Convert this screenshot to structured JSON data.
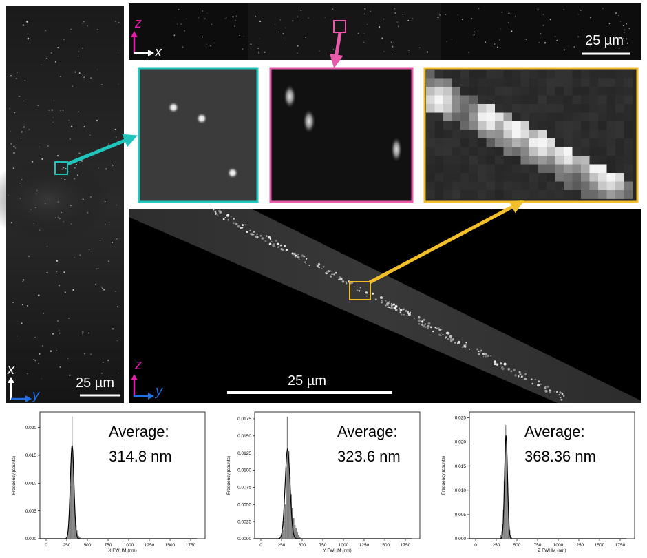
{
  "colors": {
    "cyan": "#1fc4bb",
    "pink": "#e85bab",
    "yellow": "#f3be2c",
    "z_axis": "#e21fa6",
    "x_axis": "#ffffff",
    "y_axis": "#1f6fe5"
  },
  "left_panel": {
    "x_label": "x",
    "y_label": "y",
    "scale_label": "25 µm"
  },
  "top_panel": {
    "z_label": "z",
    "x_label": "x",
    "scale_label": "25 µm"
  },
  "bottom_panel": {
    "z_label": "z",
    "y_label": "y",
    "scale_label": "25 µm"
  },
  "insets": [
    {
      "name": "cyan inset"
    },
    {
      "name": "pink inset"
    },
    {
      "name": "yellow inset"
    }
  ],
  "chart_data": [
    {
      "type": "bar",
      "xlabel": "X FWHM (nm)",
      "ylabel": "Frequency (counts)",
      "xlim": [
        -75,
        1925
      ],
      "ylim": [
        0,
        0.0228
      ],
      "xticks": [
        0,
        250,
        500,
        750,
        1000,
        1250,
        1500,
        1750
      ],
      "xtick_labels": [
        "0",
        "250",
        "500",
        "750",
        "1000",
        "1250",
        "1500",
        "1750"
      ],
      "yticks": [
        0,
        0.005,
        0.01,
        0.015,
        0.02
      ],
      "ytick_labels": [
        "0.000",
        "0.005",
        "0.010",
        "0.015",
        "0.020"
      ],
      "annotation": [
        "Average:",
        "314.8 nm"
      ],
      "histogram_x": [
        250,
        260,
        270,
        280,
        290,
        300,
        310,
        320,
        330,
        340,
        350,
        360,
        370,
        380,
        390,
        400,
        410
      ],
      "histogram_y": [
        0.0007,
        0.001,
        0.0025,
        0.005,
        0.0095,
        0.0155,
        0.022,
        0.016,
        0.011,
        0.007,
        0.004,
        0.0025,
        0.0015,
        0.0009,
        0.0005,
        0.0003,
        0.0002
      ],
      "fit_center": 314.8,
      "fit_sigma": 22,
      "fit_peak": 0.0168
    },
    {
      "type": "bar",
      "xlabel": "Y FWHM (nm)",
      "ylabel": "Frequency (counts)",
      "xlim": [
        -75,
        1925
      ],
      "ylim": [
        0,
        0.0185
      ],
      "xticks": [
        0,
        250,
        500,
        750,
        1000,
        1250,
        1500,
        1750
      ],
      "xtick_labels": [
        "0",
        "250",
        "500",
        "750",
        "1000",
        "1250",
        "1500",
        "1750"
      ],
      "yticks": [
        0,
        0.0025,
        0.005,
        0.0075,
        0.01,
        0.0125,
        0.015,
        0.0175
      ],
      "ytick_labels": [
        "0.0000",
        "0.0025",
        "0.0050",
        "0.0075",
        "0.0100",
        "0.0125",
        "0.0150",
        "0.0175"
      ],
      "annotation": [
        "Average:",
        "323.6 nm"
      ],
      "histogram_x": [
        240,
        255,
        270,
        285,
        300,
        315,
        330,
        345,
        360,
        375,
        390,
        405,
        420,
        435,
        450,
        465
      ],
      "histogram_y": [
        0.0006,
        0.0012,
        0.0025,
        0.005,
        0.0105,
        0.0178,
        0.0128,
        0.009,
        0.0065,
        0.0045,
        0.003,
        0.002,
        0.0015,
        0.001,
        0.0006,
        0.0003
      ],
      "fit_center": 323.6,
      "fit_sigma": 30,
      "fit_peak": 0.0131
    },
    {
      "type": "bar",
      "xlabel": "Z FWHM (nm)",
      "ylabel": "Frequency (counts)",
      "xlim": [
        -75,
        1925
      ],
      "ylim": [
        0,
        0.0262
      ],
      "xticks": [
        0,
        250,
        500,
        750,
        1000,
        1250,
        1500,
        1750
      ],
      "xtick_labels": [
        "0",
        "250",
        "500",
        "750",
        "1000",
        "1250",
        "1500",
        "1750"
      ],
      "yticks": [
        0,
        0.005,
        0.01,
        0.015,
        0.02,
        0.025
      ],
      "ytick_labels": [
        "0.000",
        "0.005",
        "0.010",
        "0.015",
        "0.020",
        "0.025"
      ],
      "annotation": [
        "Average:",
        "368.36 nm"
      ],
      "histogram_x": [
        300,
        310,
        320,
        330,
        340,
        350,
        360,
        370,
        380,
        390,
        400,
        410,
        420,
        430
      ],
      "histogram_y": [
        0.0008,
        0.0015,
        0.003,
        0.006,
        0.012,
        0.018,
        0.0235,
        0.021,
        0.013,
        0.007,
        0.0035,
        0.0018,
        0.0008,
        0.0004
      ],
      "fit_center": 368.36,
      "fit_sigma": 18,
      "fit_peak": 0.0214
    }
  ]
}
